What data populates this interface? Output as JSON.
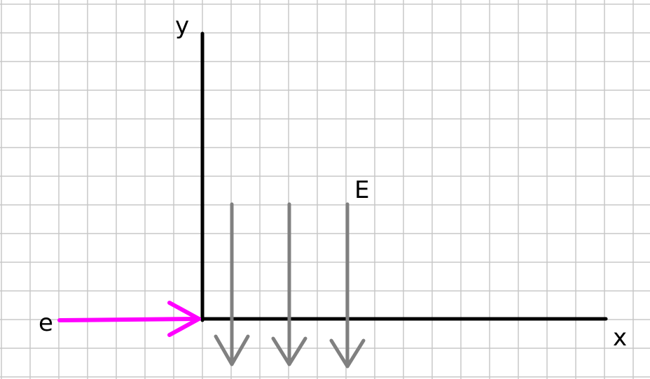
{
  "diagram": {
    "labels": {
      "x_axis": "x",
      "y_axis": "y",
      "field": "E",
      "particle": "e"
    },
    "colors": {
      "background": "#ffffff",
      "grid": "#c8c8c8",
      "axes": "#000000",
      "field_arrows": "#808080",
      "particle_arrow": "#ff00ff",
      "text": "#000000"
    },
    "field_arrow_count": 3,
    "field_direction": "down",
    "particle_direction": "right"
  }
}
